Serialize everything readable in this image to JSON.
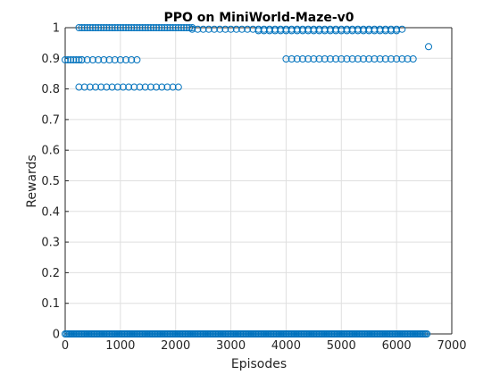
{
  "chart_data": {
    "type": "scatter",
    "title": "PPO on MiniWorld-Maze-v0",
    "xlabel": "Episodes",
    "ylabel": "Rewards",
    "xlim": [
      0,
      7000
    ],
    "ylim": [
      0,
      1
    ],
    "xticks": [
      0,
      1000,
      2000,
      3000,
      4000,
      5000,
      6000,
      7000
    ],
    "yticks": [
      0,
      0.1,
      0.2,
      0.3,
      0.4,
      0.5,
      0.6,
      0.7,
      0.8,
      0.9,
      1
    ],
    "ytick_labels": [
      "0",
      "0.1",
      "0.2",
      "0.3",
      "0.4",
      "0.5",
      "0.6",
      "0.7",
      "0.8",
      "0.9",
      "1"
    ],
    "grid": true,
    "marker": "open-circle",
    "marker_color": "#0072bd",
    "series": [
      {
        "points": [
          {
            "x_range": [
              0,
              6550
            ],
            "step": 25,
            "y": 0
          },
          {
            "x_range": [
              0,
              300
            ],
            "step": 50,
            "y": 0.895
          },
          {
            "x_range": [
              300,
              1300
            ],
            "step": 100,
            "y": 0.895
          },
          {
            "x_range": [
              250,
              2100
            ],
            "step": 100,
            "y": 0.806
          },
          {
            "x_range": [
              250,
              2300
            ],
            "step": 50,
            "y": 1.0
          },
          {
            "x_range": [
              2300,
              6100
            ],
            "step": 100,
            "y": 0.995
          },
          {
            "x_range": [
              3500,
              6000
            ],
            "step": 100,
            "y": 0.99
          },
          {
            "x_range": [
              4000,
              6300
            ],
            "step": 100,
            "y": 0.898
          },
          {
            "x": 6580,
            "y": 0.938
          }
        ]
      }
    ]
  }
}
